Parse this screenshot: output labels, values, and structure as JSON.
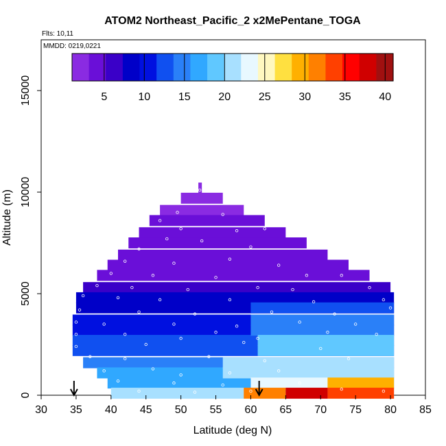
{
  "chart_data": {
    "type": "heatmap",
    "title": "ATOM2 Northeast_Pacific_2 x2MePentane_TOGA",
    "flights_label": "Flts: 10,11",
    "dates_label": "MMDD: 0219,0221",
    "xlabel": "Latitude (deg N)",
    "ylabel": "Altitude (m)",
    "xlim": [
      30,
      85
    ],
    "ylim": [
      0,
      17500
    ],
    "x_ticks": [
      "30",
      "35",
      "40",
      "45",
      "50",
      "55",
      "60",
      "65",
      "70",
      "75",
      "80",
      "85"
    ],
    "y_ticks": [
      "0",
      "5000",
      "10000",
      "15000"
    ],
    "colorbar": {
      "range": [
        1,
        41
      ],
      "tick_values": [
        5,
        10,
        15,
        20,
        25,
        30,
        35,
        40
      ],
      "tick_labels": [
        "5",
        "10",
        "15",
        "20",
        "25",
        "30",
        "35",
        "40"
      ],
      "colors": [
        "#8a2be2",
        "#6a0fd8",
        "#3a00c8",
        "#0000c8",
        "#0010e0",
        "#1050f0",
        "#2a80f8",
        "#30a8ff",
        "#60c8ff",
        "#a8e0ff",
        "#e8f8ff",
        "#fff8c0",
        "#ffe040",
        "#ffb000",
        "#ff8000",
        "#ff4000",
        "#ff0000",
        "#d00000",
        "#a01010"
      ]
    },
    "arrows_lat": [
      34.7,
      61.2
    ],
    "altitude_bands": [
      {
        "alt": 10200,
        "lat_min": 52.5,
        "lat_max": 53.0,
        "value": 2
      },
      {
        "alt": 9700,
        "lat_min": 50.0,
        "lat_max": 56.0,
        "value": 2.5
      },
      {
        "alt": 9100,
        "lat_min": 47.0,
        "lat_max": 59.0,
        "value": 3
      },
      {
        "alt": 8600,
        "lat_min": 45.5,
        "lat_max": 62.0,
        "value": 3.5
      },
      {
        "alt": 8000,
        "lat_min": 44.0,
        "lat_max": 65.0,
        "value": 4
      },
      {
        "alt": 7500,
        "lat_min": 42.5,
        "lat_max": 68.0,
        "value": 4
      },
      {
        "alt": 6900,
        "lat_min": 41.0,
        "lat_max": 71.0,
        "value": 4.5
      },
      {
        "alt": 6400,
        "lat_min": 39.5,
        "lat_max": 74.0,
        "value": 5
      },
      {
        "alt": 5900,
        "lat_min": 38.0,
        "lat_max": 77.0,
        "value": 5
      },
      {
        "alt": 5300,
        "lat_min": 36.0,
        "lat_max": 80.0,
        "value": 6
      },
      {
        "alt": 4800,
        "lat_min": 35.0,
        "lat_max": 80.5,
        "value": 8
      },
      {
        "alt": 4300,
        "lat_min": 35.0,
        "lat_max": 80.5,
        "value": 9
      },
      {
        "alt": 3700,
        "lat_min": 34.5,
        "lat_max": 80.5,
        "value": 11
      },
      {
        "alt": 3200,
        "lat_min": 34.5,
        "lat_max": 80.5,
        "value": 11
      },
      {
        "alt": 2700,
        "lat_min": 34.5,
        "lat_max": 80.5,
        "value": 13
      },
      {
        "alt": 2200,
        "lat_min": 34.5,
        "lat_max": 80.5,
        "value": 13
      },
      {
        "alt": 1600,
        "lat_min": 36.0,
        "lat_max": 80.5,
        "value": 14
      },
      {
        "alt": 1100,
        "lat_min": 38.0,
        "lat_max": 80.5,
        "value": 16
      },
      {
        "alt": 600,
        "lat_min": 39.5,
        "lat_max": 80.5,
        "value": 17
      },
      {
        "alt": 100,
        "lat_min": 40.0,
        "lat_max": 80.5,
        "value": 20
      }
    ],
    "regional_overrides": [
      {
        "alt": 4300,
        "lat_min": 60.0,
        "lat_max": 80.5,
        "value": 12
      },
      {
        "alt": 3700,
        "lat_min": 60.0,
        "lat_max": 80.5,
        "value": 14
      },
      {
        "alt": 3200,
        "lat_min": 60.0,
        "lat_max": 80.5,
        "value": 15
      },
      {
        "alt": 2700,
        "lat_min": 61.0,
        "lat_max": 80.5,
        "value": 18
      },
      {
        "alt": 2200,
        "lat_min": 61.0,
        "lat_max": 80.5,
        "value": 18
      },
      {
        "alt": 1600,
        "lat_min": 56.0,
        "lat_max": 80.5,
        "value": 21
      },
      {
        "alt": 1100,
        "lat_min": 56.0,
        "lat_max": 80.5,
        "value": 22
      },
      {
        "alt": 600,
        "lat_min": 60.0,
        "lat_max": 71.0,
        "value": 24
      },
      {
        "alt": 600,
        "lat_min": 71.0,
        "lat_max": 80.5,
        "value": 29
      },
      {
        "alt": 100,
        "lat_min": 59.0,
        "lat_max": 65.0,
        "value": 32
      },
      {
        "alt": 100,
        "lat_min": 65.0,
        "lat_max": 71.0,
        "value": 38
      },
      {
        "alt": 100,
        "lat_min": 71.0,
        "lat_max": 80.5,
        "value": 33
      }
    ],
    "sample_points": [
      [
        52.7,
        10100
      ],
      [
        49.5,
        9000
      ],
      [
        56.0,
        8900
      ],
      [
        47.0,
        8600
      ],
      [
        50.0,
        8200
      ],
      [
        58.0,
        8100
      ],
      [
        62.0,
        8200
      ],
      [
        48.0,
        7700
      ],
      [
        53.0,
        7600
      ],
      [
        60.0,
        7300
      ],
      [
        44.0,
        7200
      ],
      [
        57.0,
        6700
      ],
      [
        42.0,
        6600
      ],
      [
        49.0,
        6500
      ],
      [
        64.0,
        6400
      ],
      [
        40.0,
        6000
      ],
      [
        46.0,
        5900
      ],
      [
        55.0,
        5800
      ],
      [
        68.0,
        5900
      ],
      [
        73.0,
        5900
      ],
      [
        38.0,
        5400
      ],
      [
        43.0,
        5300
      ],
      [
        51.0,
        5200
      ],
      [
        61.0,
        5300
      ],
      [
        66.0,
        5200
      ],
      [
        77.0,
        5300
      ],
      [
        36.0,
        4900
      ],
      [
        41.0,
        4800
      ],
      [
        47.0,
        4700
      ],
      [
        57.0,
        4700
      ],
      [
        69.0,
        4600
      ],
      [
        79.0,
        4700
      ],
      [
        35.5,
        4200
      ],
      [
        44.0,
        4100
      ],
      [
        52.0,
        4000
      ],
      [
        63.0,
        4100
      ],
      [
        72.0,
        4000
      ],
      [
        80.0,
        4300
      ],
      [
        35.0,
        3600
      ],
      [
        39.0,
        3500
      ],
      [
        49.0,
        3500
      ],
      [
        58.0,
        3400
      ],
      [
        67.0,
        3600
      ],
      [
        75.0,
        3500
      ],
      [
        35.0,
        3000
      ],
      [
        42.0,
        3000
      ],
      [
        55.0,
        3100
      ],
      [
        71.0,
        3100
      ],
      [
        78.0,
        3000
      ],
      [
        35.0,
        2400
      ],
      [
        45.0,
        2500
      ],
      [
        50.0,
        2800
      ],
      [
        59.0,
        2600
      ],
      [
        61.0,
        2800
      ],
      [
        70.0,
        2300
      ],
      [
        37.0,
        1900
      ],
      [
        42.0,
        1800
      ],
      [
        54.0,
        1900
      ],
      [
        62.0,
        1700
      ],
      [
        74.0,
        1800
      ],
      [
        39.0,
        1200
      ],
      [
        46.0,
        1300
      ],
      [
        50.0,
        1000
      ],
      [
        57.0,
        1100
      ],
      [
        64.0,
        1200
      ],
      [
        41.0,
        700
      ],
      [
        49.0,
        600
      ],
      [
        56.0,
        500
      ],
      [
        67.0,
        600
      ],
      [
        44.0,
        200
      ],
      [
        52.0,
        150
      ],
      [
        60.0,
        200
      ],
      [
        73.0,
        300
      ],
      [
        79.0,
        200
      ]
    ]
  }
}
